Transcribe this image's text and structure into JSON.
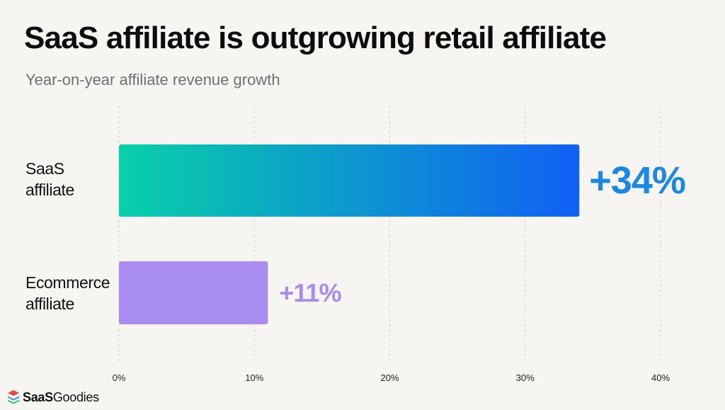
{
  "title": "SaaS affiliate is outgrowing retail affiliate",
  "subtitle": "Year-on-year affiliate revenue growth",
  "brand": {
    "part1": "SaaS",
    "part2": "Goodies"
  },
  "colors": {
    "saas_bar_start": "#08d0a8",
    "saas_bar_end": "#1160f5",
    "saas_label": "#1a88e6",
    "ecommerce_bar": "#a88cf0",
    "ecommerce_label": "#a88cf0",
    "grid": "#cfcfcf"
  },
  "chart_data": {
    "type": "bar",
    "orientation": "horizontal",
    "categories": [
      [
        "SaaS",
        "affiliate"
      ],
      [
        "Ecommerce",
        "affiliate"
      ]
    ],
    "values": [
      34,
      11
    ],
    "value_labels": [
      "+34%",
      "+11%"
    ],
    "xlim": [
      0,
      40
    ],
    "xticks": [
      0,
      10,
      20,
      30,
      40
    ],
    "tick_labels": [
      "0%",
      "10%",
      "20%",
      "30%",
      "40%"
    ],
    "grid": "vertical dashed",
    "legend": "none"
  }
}
